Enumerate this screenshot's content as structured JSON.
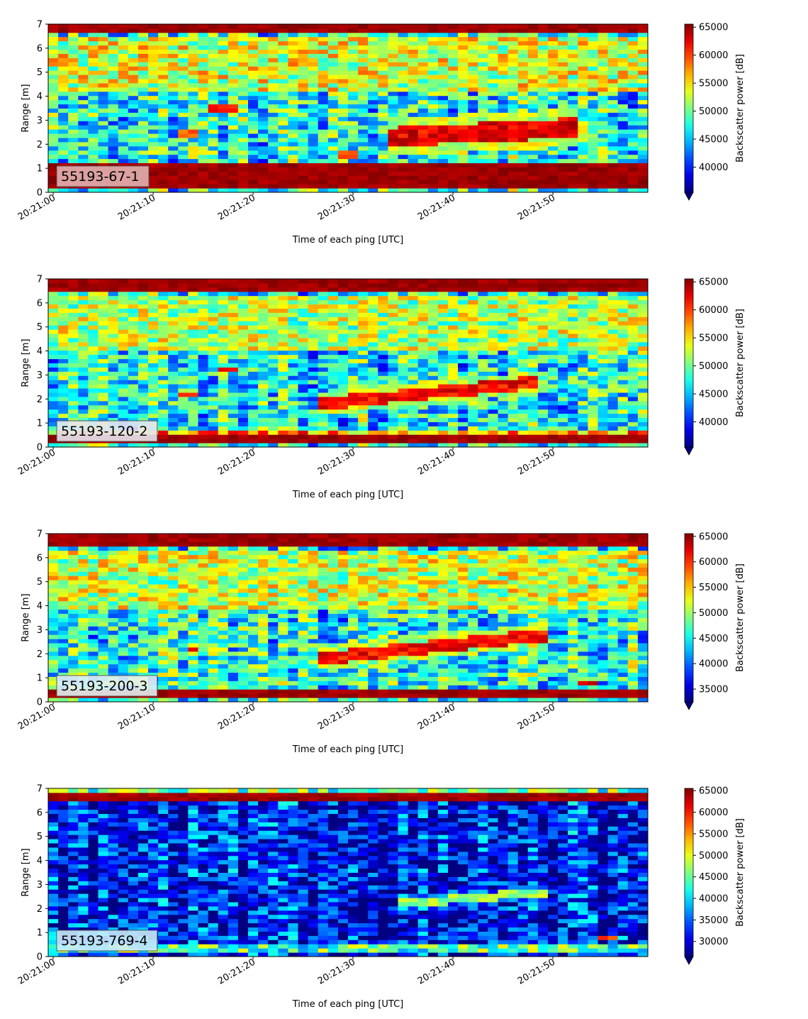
{
  "chart_data": [
    {
      "type": "heatmap",
      "label": "55193-67-1",
      "label_bg": "#e2b1b1",
      "xlabel": "Time of each ping [UTC]",
      "ylabel": "Range [m]",
      "cbar_label": "Backscatter power [dB]",
      "x_ticks": [
        "20:21:00",
        "20:21:10",
        "20:21:20",
        "20:21:30",
        "20:21:40",
        "20:21:50"
      ],
      "x_range_seconds": [
        -0.5,
        59.5
      ],
      "y_ticks": [
        "0",
        "1",
        "2",
        "3",
        "4",
        "5",
        "6",
        "7"
      ],
      "ylim": [
        0,
        7
      ],
      "cbar_ticks": [
        "40000",
        "45000",
        "50000",
        "55000",
        "60000",
        "65000"
      ],
      "clim": [
        35500,
        65535
      ],
      "background": 0.4,
      "features": [
        {
          "kind": "band",
          "y0": 0.2,
          "y1": 1.15,
          "t0": 0,
          "t1": 60,
          "level": 1.0
        },
        {
          "kind": "band",
          "y0": 6.6,
          "y1": 7.0,
          "t0": 0,
          "t1": 60,
          "level": 1.0
        },
        {
          "kind": "band",
          "y0": 4.2,
          "y1": 6.4,
          "t0": 0,
          "t1": 60,
          "level": 0.58
        },
        {
          "kind": "line",
          "t0": 34,
          "y0": 2.3,
          "t1": 53,
          "y1": 2.7,
          "width": 0.8,
          "level": 0.97
        },
        {
          "kind": "blob",
          "t": 17.5,
          "y": 3.5,
          "rx": 1.2,
          "ry": 0.25,
          "level": 0.9
        },
        {
          "kind": "blob",
          "t": 14,
          "y": 2.5,
          "rx": 1.0,
          "ry": 0.2,
          "level": 0.82
        },
        {
          "kind": "blob",
          "t": 30,
          "y": 1.6,
          "rx": 1.0,
          "ry": 0.25,
          "level": 0.82
        }
      ]
    },
    {
      "type": "heatmap",
      "label": "55193-120-2",
      "label_bg": "#e6e6ef",
      "xlabel": "Time of each ping [UTC]",
      "ylabel": "Range [m]",
      "cbar_label": "Backscatter power [dB]",
      "x_ticks": [
        "20:21:00",
        "20:21:10",
        "20:21:20",
        "20:21:30",
        "20:21:40",
        "20:21:50"
      ],
      "x_range_seconds": [
        -0.5,
        59.5
      ],
      "y_ticks": [
        "0",
        "1",
        "2",
        "3",
        "4",
        "5",
        "6",
        "7"
      ],
      "ylim": [
        0,
        7
      ],
      "cbar_ticks": [
        "40000",
        "45000",
        "50000",
        "55000",
        "60000",
        "65000"
      ],
      "clim": [
        35500,
        65535
      ],
      "background": 0.38,
      "features": [
        {
          "kind": "band",
          "y0": 0.1,
          "y1": 0.5,
          "t0": 0,
          "t1": 60,
          "level": 1.0
        },
        {
          "kind": "band",
          "y0": 0.5,
          "y1": 0.75,
          "t0": 0,
          "t1": 60,
          "level": 0.72
        },
        {
          "kind": "band",
          "y0": 6.5,
          "y1": 7.0,
          "t0": 0,
          "t1": 60,
          "level": 1.0
        },
        {
          "kind": "band",
          "y0": 4.0,
          "y1": 6.3,
          "t0": 0,
          "t1": 60,
          "level": 0.54
        },
        {
          "kind": "line",
          "t0": 27,
          "y0": 1.8,
          "t1": 49,
          "y1": 2.7,
          "width": 0.5,
          "level": 0.95
        },
        {
          "kind": "blob",
          "t": 14,
          "y": 2.2,
          "rx": 1.0,
          "ry": 0.15,
          "level": 0.9
        },
        {
          "kind": "blob",
          "t": 18,
          "y": 3.25,
          "rx": 0.8,
          "ry": 0.15,
          "level": 0.9
        }
      ]
    },
    {
      "type": "heatmap",
      "label": "55193-200-3",
      "label_bg": "#e2f0f2",
      "xlabel": "Time of each ping [UTC]",
      "ylabel": "Range [m]",
      "cbar_label": "Backscatter power [dB]",
      "x_ticks": [
        "20:21:00",
        "20:21:10",
        "20:21:20",
        "20:21:30",
        "20:21:40",
        "20:21:50"
      ],
      "x_range_seconds": [
        -0.5,
        59.5
      ],
      "y_ticks": [
        "0",
        "1",
        "2",
        "3",
        "4",
        "5",
        "6",
        "7"
      ],
      "ylim": [
        0,
        7
      ],
      "cbar_ticks": [
        "35000",
        "40000",
        "45000",
        "50000",
        "55000",
        "60000",
        "65000"
      ],
      "clim": [
        32500,
        65535
      ],
      "background": 0.4,
      "features": [
        {
          "kind": "band",
          "y0": 0.1,
          "y1": 0.45,
          "t0": 0,
          "t1": 60,
          "level": 1.0
        },
        {
          "kind": "band",
          "y0": 0.45,
          "y1": 0.6,
          "t0": 0,
          "t1": 60,
          "level": 0.7
        },
        {
          "kind": "band",
          "y0": 6.5,
          "y1": 7.0,
          "t0": 0,
          "t1": 60,
          "level": 1.0
        },
        {
          "kind": "band",
          "y0": 3.8,
          "y1": 6.3,
          "t0": 0,
          "t1": 60,
          "level": 0.56
        },
        {
          "kind": "line",
          "t0": 27,
          "y0": 1.8,
          "t1": 50,
          "y1": 2.8,
          "width": 0.5,
          "level": 0.95
        },
        {
          "kind": "blob",
          "t": 14.5,
          "y": 2.2,
          "rx": 1.0,
          "ry": 0.15,
          "level": 0.9
        },
        {
          "kind": "blob",
          "t": 54,
          "y": 0.8,
          "rx": 1.5,
          "ry": 0.12,
          "level": 0.95
        }
      ]
    },
    {
      "type": "heatmap",
      "label": "55193-769-4",
      "label_bg": "#c9ecf8",
      "xlabel": "Time of each ping [UTC]",
      "ylabel": "Range [m]",
      "cbar_label": "Backscatter power [dB]",
      "x_ticks": [
        "20:21:00",
        "20:21:10",
        "20:21:20",
        "20:21:30",
        "20:21:40",
        "20:21:50"
      ],
      "x_range_seconds": [
        -0.5,
        59.5
      ],
      "y_ticks": [
        "0",
        "1",
        "2",
        "3",
        "4",
        "5",
        "6",
        "7"
      ],
      "ylim": [
        0,
        7
      ],
      "cbar_ticks": [
        "30000",
        "35000",
        "40000",
        "45000",
        "50000",
        "55000",
        "60000",
        "65000"
      ],
      "clim": [
        26500,
        65535
      ],
      "background": 0.12,
      "features": [
        {
          "kind": "band",
          "y0": 0.1,
          "y1": 0.25,
          "t0": 0,
          "t1": 60,
          "level": 1.0
        },
        {
          "kind": "band",
          "y0": 0.25,
          "y1": 0.6,
          "t0": 0,
          "t1": 60,
          "level": 0.45
        },
        {
          "kind": "band",
          "y0": 6.5,
          "y1": 6.75,
          "t0": 0,
          "t1": 60,
          "level": 1.0
        },
        {
          "kind": "band",
          "y0": 6.75,
          "y1": 7.0,
          "t0": 0,
          "t1": 60,
          "level": 0.48
        },
        {
          "kind": "line",
          "t0": 35,
          "y0": 2.2,
          "t1": 50,
          "y1": 2.7,
          "width": 0.35,
          "level": 0.6
        },
        {
          "kind": "blob",
          "t": 56,
          "y": 0.8,
          "rx": 0.8,
          "ry": 0.12,
          "level": 0.85
        }
      ]
    }
  ]
}
